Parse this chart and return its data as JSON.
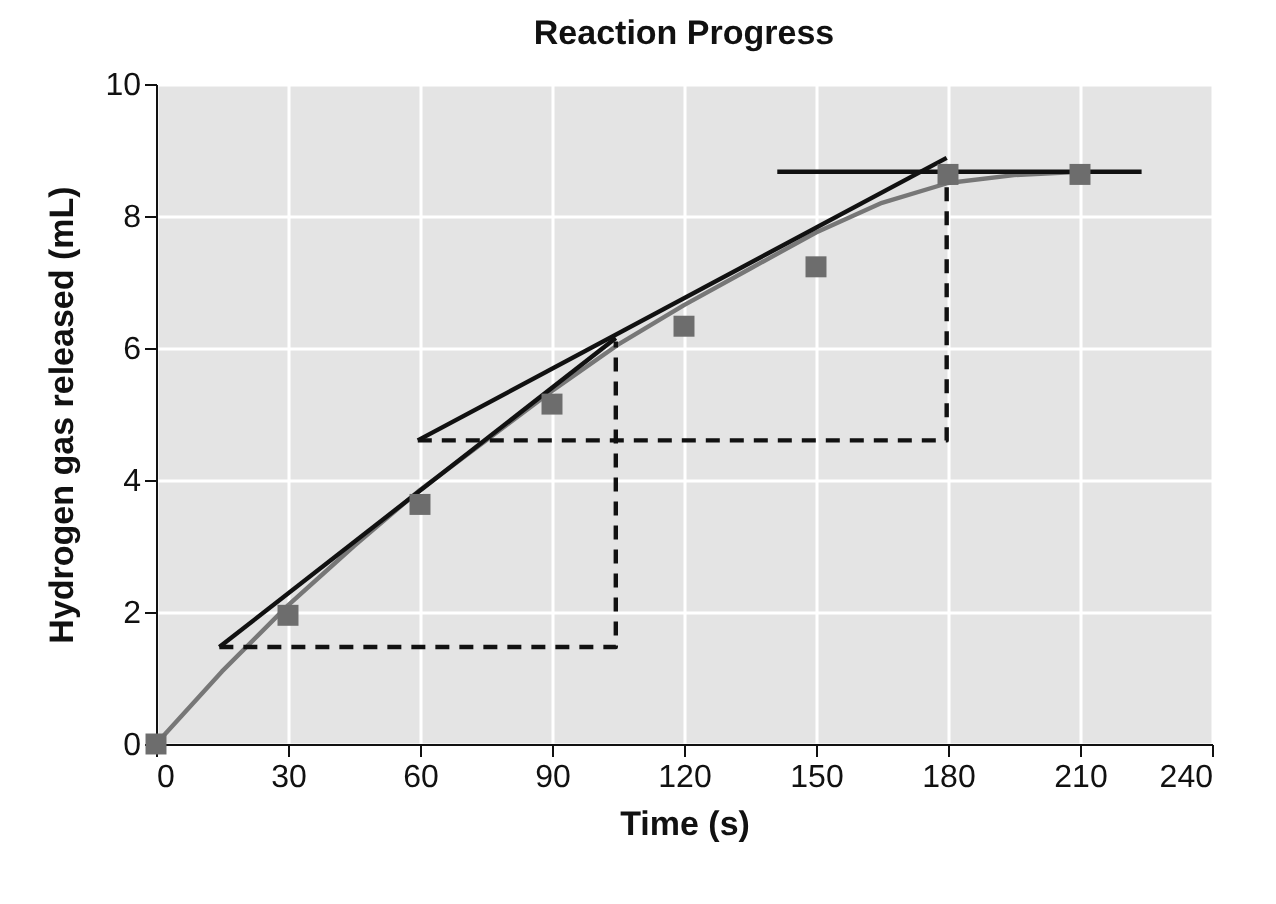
{
  "chart_data": {
    "type": "line",
    "title": "Reaction Progress",
    "xlabel": "Time (s)",
    "ylabel": "Hydrogen gas released (mL)",
    "xlim": [
      0,
      240
    ],
    "xticks": [
      0,
      30,
      60,
      90,
      120,
      150,
      180,
      210,
      240
    ],
    "ylim": [
      0,
      10
    ],
    "yticks": [
      0,
      2,
      4,
      6,
      8,
      10
    ],
    "grid": true,
    "series": [
      {
        "type": "line",
        "color": "#777777",
        "line_style": "solid",
        "marker": "none",
        "x": [
          0,
          15,
          30,
          45,
          60,
          75,
          90,
          105,
          120,
          135,
          150,
          165,
          180,
          195,
          210
        ],
        "values": [
          0,
          1.1,
          2.1,
          3.0,
          3.85,
          4.6,
          5.35,
          6.05,
          6.65,
          7.2,
          7.75,
          8.2,
          8.5,
          8.62,
          8.67
        ]
      },
      {
        "type": "line",
        "color": "#111111",
        "line_style": "solid",
        "marker": "none",
        "x": [
          14.4,
          104.5
        ],
        "values": [
          1.47,
          6.15
        ]
      },
      {
        "type": "line",
        "color": "#111111",
        "line_style": "dashed",
        "marker": "none",
        "x": [
          14.4,
          104.5,
          104.5
        ],
        "values": [
          1.47,
          1.47,
          6.1
        ]
      },
      {
        "type": "line",
        "color": "#111111",
        "line_style": "solid",
        "marker": "none",
        "x": [
          59.5,
          179.7
        ],
        "values": [
          4.6,
          8.88
        ]
      },
      {
        "type": "line",
        "color": "#111111",
        "line_style": "dashed",
        "marker": "none",
        "x": [
          59.5,
          179.7,
          179.7
        ],
        "values": [
          4.6,
          4.6,
          8.6
        ]
      },
      {
        "type": "line",
        "color": "#111111",
        "line_style": "solid",
        "marker": "none",
        "x": [
          141.2,
          224
        ],
        "values": [
          8.67,
          8.67
        ]
      },
      {
        "type": "scatter",
        "color": "#6d6d6d",
        "marker": "square",
        "x": [
          0,
          30,
          60,
          90,
          120,
          150,
          180,
          210
        ],
        "values": [
          0,
          1.95,
          3.63,
          5.15,
          6.33,
          7.23,
          8.63,
          8.63
        ]
      }
    ]
  }
}
